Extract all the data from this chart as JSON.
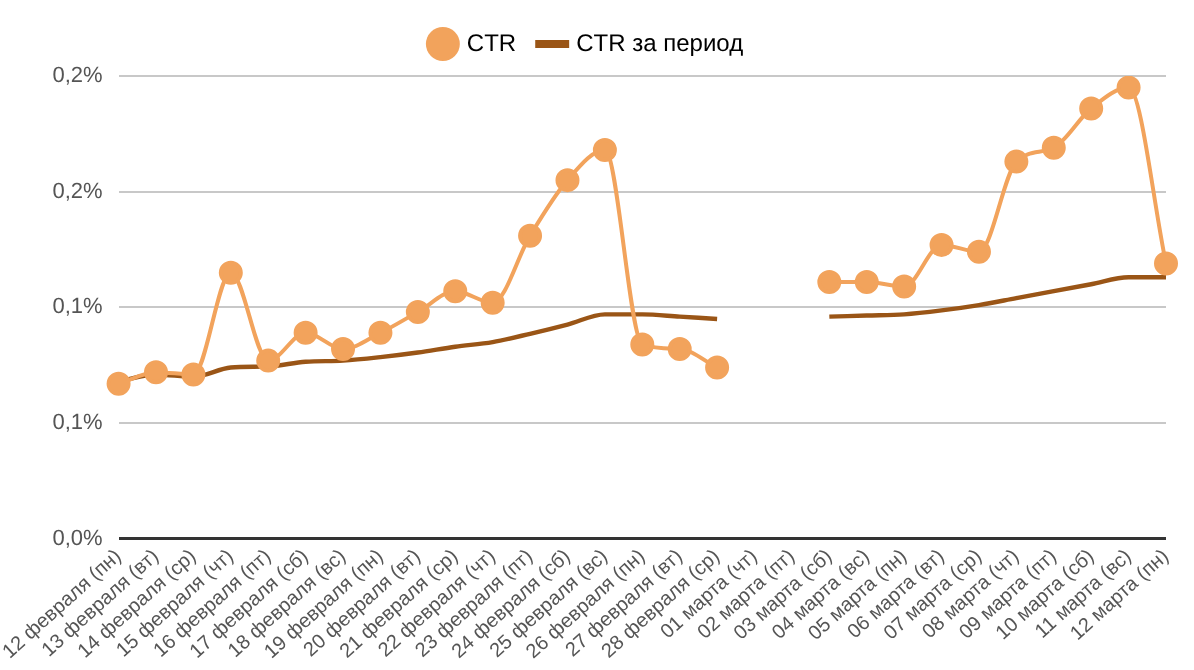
{
  "chart_data": {
    "type": "line",
    "categories": [
      "12 февраля (пн)",
      "13 февраля (вт)",
      "14 февраля (ср)",
      "15 февраля (чт)",
      "16 февраля (пт)",
      "17 февраля (сб)",
      "18 февраля (вс)",
      "19 февраля (пн)",
      "20 февраля (вт)",
      "21 февраля (ср)",
      "22 февраля (чт)",
      "23 февраля (пт)",
      "24 февраля (сб)",
      "25 февраля (вс)",
      "26 февраля (пн)",
      "27 февраля (вт)",
      "28 февраля (ср)",
      "01 марта (чт)",
      "02 марта (пт)",
      "03 марта (сб)",
      "04 марта (вс)",
      "05 марта (пн)",
      "06 марта (вт)",
      "07 марта (ср)",
      "08 марта (чт)",
      "09 марта (пт)",
      "10 марта (сб)",
      "11 марта (вс)",
      "12 марта (пн)"
    ],
    "series": [
      {
        "name": "CTR",
        "color": "#f2a35c",
        "marker": "circle",
        "values": [
          0.067,
          0.072,
          0.071,
          0.115,
          0.077,
          0.089,
          0.082,
          0.089,
          0.098,
          0.107,
          0.102,
          0.131,
          0.155,
          0.168,
          0.084,
          0.082,
          0.074,
          null,
          null,
          0.111,
          0.111,
          0.109,
          0.127,
          0.124,
          0.163,
          0.169,
          0.186,
          0.195,
          0.119
        ]
      },
      {
        "name": "CTR за период",
        "color": "#9a5516",
        "marker": "none",
        "values": [
          0.068,
          0.071,
          0.07,
          0.074,
          0.0745,
          0.0765,
          0.077,
          0.0785,
          0.0805,
          0.083,
          0.085,
          0.0886,
          0.0926,
          0.097,
          0.097,
          0.096,
          0.095,
          null,
          null,
          0.096,
          0.0965,
          0.097,
          0.0987,
          0.101,
          0.104,
          0.107,
          0.11,
          0.113,
          0.113
        ]
      }
    ],
    "ylim": [
      0,
      0.2
    ],
    "yticks": [
      {
        "value": 0,
        "label": "0,0%"
      },
      {
        "value": 0.05,
        "label": "0,1%"
      },
      {
        "value": 0.1,
        "label": "0,1%"
      },
      {
        "value": 0.15,
        "label": "0,2%"
      },
      {
        "value": 0.2,
        "label": "0,2%"
      }
    ],
    "grid": "y",
    "legend": "top"
  }
}
